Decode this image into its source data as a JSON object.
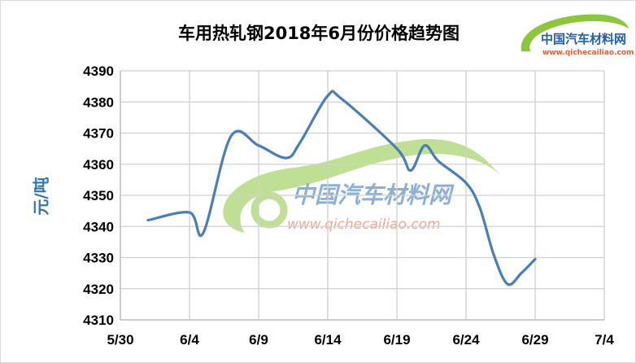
{
  "chart_data": {
    "type": "line",
    "title": "车用热轧钢2018年6月份价格趋势图",
    "ylabel": "元/吨",
    "xlabel": "",
    "ylim": [
      4310,
      4390
    ],
    "yticks": [
      "4310",
      "4320",
      "4330",
      "4340",
      "4350",
      "4360",
      "4370",
      "4380",
      "4390"
    ],
    "xlim": [
      "5/30",
      "7/4"
    ],
    "xticks": [
      "5/30",
      "6/4",
      "6/9",
      "6/14",
      "6/19",
      "6/24",
      "6/29",
      "7/4"
    ],
    "grid": true,
    "line_color": "#4a7ebb",
    "series": [
      {
        "x": [
          "6/1",
          "6/4",
          "6/5",
          "6/7",
          "6/9",
          "6/11",
          "6/12",
          "6/14",
          "6/15",
          "6/19",
          "6/20",
          "6/21",
          "6/22",
          "6/24",
          "6/25",
          "6/26",
          "6/27",
          "6/28",
          "6/29"
        ],
        "values": [
          4342,
          4344.5,
          4338,
          4369,
          4366,
          4362,
          4367,
          4382,
          4381,
          4365,
          4358,
          4366,
          4361,
          4354,
          4346,
          4331,
          4321.5,
          4325,
          4329.5
        ]
      }
    ]
  },
  "watermark": {
    "logo_text": "中国汽车材料网",
    "url": "www.qichecailiao.com"
  }
}
